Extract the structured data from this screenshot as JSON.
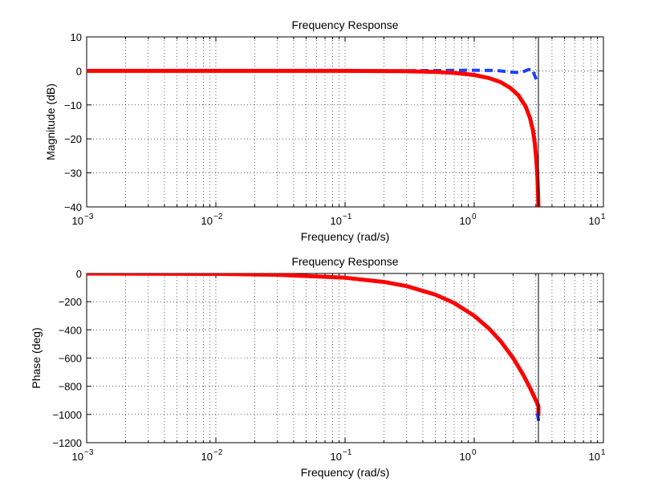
{
  "chart_data": [
    {
      "id": "magnitude",
      "type": "line",
      "title": "Frequency Response",
      "xlabel": "Frequency (rad/s)",
      "ylabel": "Magnitude (dB)",
      "xscale": "log",
      "xlim": [
        0.001,
        10
      ],
      "ylim": [
        -40,
        10
      ],
      "yticks": [
        10,
        0,
        -10,
        -20,
        -30,
        -40
      ],
      "yticklabels": [
        "10",
        "0",
        "−10",
        "−20",
        "−30",
        "−40"
      ],
      "xticks": [
        0.001,
        0.01,
        0.1,
        1,
        10
      ],
      "xticklabels": [
        {
          "base": "10",
          "exp": "−3"
        },
        {
          "base": "10",
          "exp": "−2"
        },
        {
          "base": "10",
          "exp": "−1"
        },
        {
          "base": "10",
          "exp": "0"
        },
        {
          "base": "10",
          "exp": "1"
        }
      ],
      "grid": true,
      "vline_x": 3.14,
      "series": [
        {
          "name": "dashed-blue",
          "color": "#1f3fff",
          "style": "dashed",
          "x": [
            0.001,
            0.01,
            0.1,
            0.2,
            0.5,
            1.0,
            1.5,
            2.0,
            2.3,
            2.6,
            2.8,
            2.95,
            3.05,
            3.14
          ],
          "y": [
            0,
            0,
            0,
            0,
            0.1,
            0.2,
            0.1,
            -0.4,
            -0.5,
            0.3,
            0.6,
            -1.5,
            -2.8,
            -3.5
          ]
        },
        {
          "name": "solid-red",
          "color": "#ff0000",
          "style": "solid",
          "x": [
            0.001,
            0.01,
            0.1,
            0.2,
            0.3,
            0.5,
            0.7,
            1.0,
            1.3,
            1.6,
            1.9,
            2.2,
            2.5,
            2.7,
            2.85,
            2.95,
            3.03,
            3.08,
            3.12,
            3.14
          ],
          "y": [
            0,
            0,
            0,
            -0.05,
            -0.1,
            -0.28,
            -0.6,
            -1.2,
            -2.1,
            -3.3,
            -5.0,
            -7.2,
            -10.5,
            -13.8,
            -17.5,
            -21.5,
            -26.5,
            -31.0,
            -36.5,
            -40
          ]
        }
      ]
    },
    {
      "id": "phase",
      "type": "line",
      "title": "Frequency Response",
      "xlabel": "Frequency (rad/s)",
      "ylabel": "Phase (deg)",
      "xscale": "log",
      "xlim": [
        0.001,
        10
      ],
      "ylim": [
        -1200,
        0
      ],
      "yticks": [
        0,
        -200,
        -400,
        -600,
        -800,
        -1000,
        -1200
      ],
      "yticklabels": [
        "0",
        "−200",
        "−400",
        "−600",
        "−800",
        "−1000",
        "−1200"
      ],
      "xticks": [
        0.001,
        0.01,
        0.1,
        1,
        10
      ],
      "xticklabels": [
        {
          "base": "10",
          "exp": "−3"
        },
        {
          "base": "10",
          "exp": "−2"
        },
        {
          "base": "10",
          "exp": "−1"
        },
        {
          "base": "10",
          "exp": "0"
        },
        {
          "base": "10",
          "exp": "1"
        }
      ],
      "grid": true,
      "vline_x": 3.14,
      "series": [
        {
          "name": "dashed-blue",
          "color": "#1f3fff",
          "style": "dashed",
          "x": [
            3.05,
            3.1,
            3.14,
            3.14
          ],
          "y": [
            -990,
            -1010,
            -1030,
            -1050
          ]
        },
        {
          "name": "solid-red",
          "color": "#ff0000",
          "style": "solid",
          "x": [
            0.001,
            0.01,
            0.03,
            0.1,
            0.2,
            0.3,
            0.5,
            0.7,
            1.0,
            1.3,
            1.6,
            2.0,
            2.4,
            2.7,
            2.9,
            3.05,
            3.14,
            3.14
          ],
          "y": [
            -0.3,
            -3,
            -9,
            -30,
            -60,
            -90,
            -150,
            -210,
            -300,
            -390,
            -480,
            -600,
            -720,
            -810,
            -870,
            -915,
            -940,
            -1010
          ]
        }
      ]
    }
  ]
}
